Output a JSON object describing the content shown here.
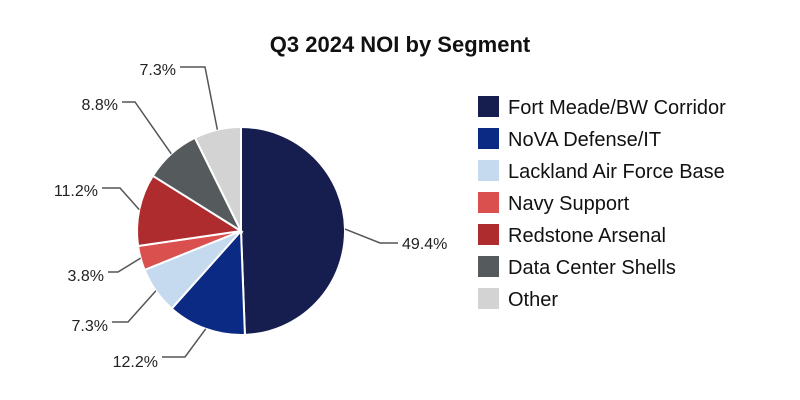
{
  "chart_data": {
    "type": "pie",
    "title": "Q3 2024 NOI by Segment",
    "legend_position": "right",
    "start_angle": "12 o'clock, clockwise",
    "slices": [
      {
        "label": "Fort Meade/BW Corridor",
        "value": 49.4,
        "display": "49.4%",
        "color": "#161d4f"
      },
      {
        "label": "NoVA Defense/IT",
        "value": 12.2,
        "display": "12.2%",
        "color": "#0b2a83"
      },
      {
        "label": "Lackland Air Force Base",
        "value": 7.3,
        "display": "7.3%",
        "color": "#c5d9ef"
      },
      {
        "label": "Navy Support",
        "value": 3.8,
        "display": "3.8%",
        "color": "#d9504f"
      },
      {
        "label": "Redstone Arsenal",
        "value": 11.2,
        "display": "11.2%",
        "color": "#ae2b2e"
      },
      {
        "label": "Data Center Shells",
        "value": 8.8,
        "display": "8.8%",
        "color": "#555b5d"
      },
      {
        "label": "Other",
        "value": 7.3,
        "display": "7.3%",
        "color": "#d3d3d3"
      }
    ]
  }
}
